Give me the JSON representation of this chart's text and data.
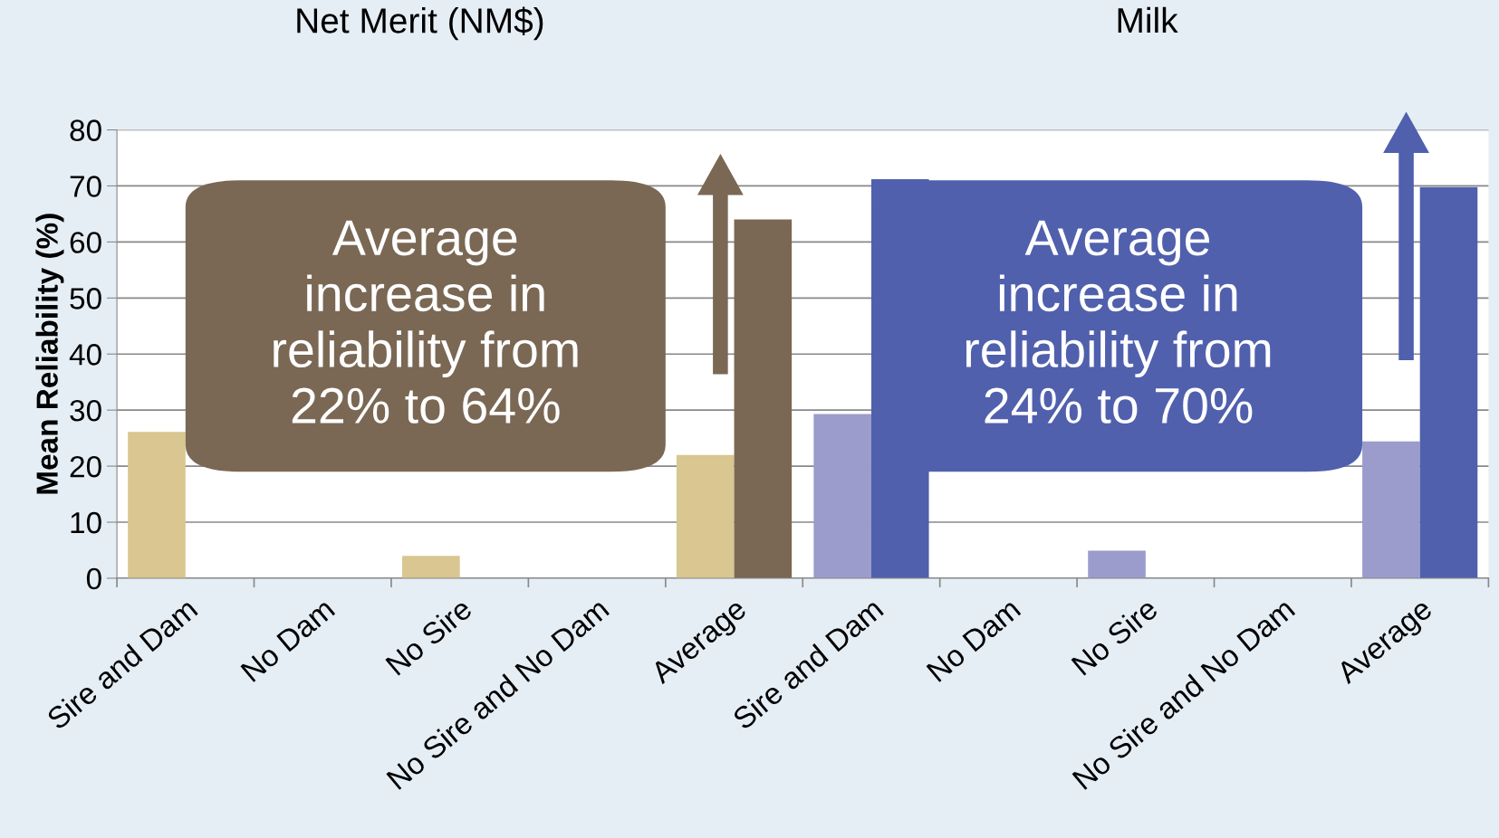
{
  "chart_data": {
    "type": "bar",
    "ylabel": "Mean Reliability (%)",
    "categories": [
      "Sire and Dam",
      "No Dam",
      "No Sire",
      "No Sire and No Dam",
      "Average",
      "Sire and Dam",
      "No Dam",
      "No Sire",
      "No Sire and No Dam",
      "Average"
    ],
    "series": [
      {
        "colors": [
          "#d9c690",
          "#d9c690",
          "#d9c690",
          "#d9c690",
          "#d9c690",
          "#9b9bcc",
          "#9b9bcc",
          "#9b9bcc",
          "#9b9bcc",
          "#9b9bcc"
        ],
        "values": [
          26.1,
          null,
          4.0,
          null,
          22.0,
          29.3,
          null,
          4.9,
          null,
          24.4
        ]
      },
      {
        "colors": [
          "#7a6854",
          "#7a6854",
          "#7a6854",
          "#7a6854",
          "#7a6854",
          "#5060ad",
          "#5060ad",
          "#5060ad",
          "#5060ad",
          "#5060ad"
        ],
        "values": [
          null,
          null,
          null,
          null,
          64.0,
          71.2,
          null,
          null,
          null,
          69.8
        ]
      }
    ],
    "ylim": [
      0,
      80
    ],
    "yticks": [
      0,
      10,
      20,
      30,
      40,
      50,
      60,
      70,
      80
    ],
    "grid": "y",
    "annotations": [
      "Net Merit (NM$)",
      "Milk",
      "Average\nincrease in\nreliability from\n22% to 64%",
      "Average\nincrease in\nreliability from\n24% to 70%"
    ]
  }
}
